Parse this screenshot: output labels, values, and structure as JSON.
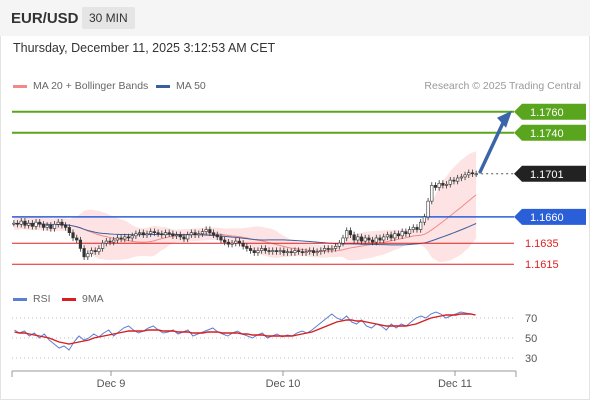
{
  "header": {
    "symbol": "EUR/USD",
    "timeframe": "30 MIN"
  },
  "datetime": "Thursday, December 11, 2025 3:12:53 AM CET",
  "legend": {
    "ma20": {
      "label": "MA 20 + Bollinger Bands",
      "color": "#f08a8a"
    },
    "ma50": {
      "label": "MA 50",
      "color": "#3a5f9f"
    }
  },
  "credit": "Research © 2025 Trading Central",
  "rsi_legend": {
    "rsi": {
      "label": "RSI",
      "color": "#5b7fd4"
    },
    "ma9": {
      "label": "9MA",
      "color": "#d81e1e"
    }
  },
  "chart_data": [
    {
      "type": "candlestick",
      "yaxis_range": [
        1.16,
        1.1775
      ],
      "current_price": {
        "label": "1.1701",
        "value": 1.1701,
        "color": "#222222"
      },
      "levels": [
        {
          "label": "1.1760",
          "value": 1.176,
          "kind": "resistance",
          "color": "#5aa51e"
        },
        {
          "label": "1.1740",
          "value": 1.174,
          "kind": "resistance",
          "color": "#5aa51e"
        },
        {
          "label": "1.1660",
          "value": 1.166,
          "kind": "pivot",
          "color": "#2a5fd8"
        },
        {
          "label": "1.1635",
          "value": 1.1635,
          "kind": "support",
          "color": "#e02020"
        },
        {
          "label": "1.1615",
          "value": 1.1615,
          "kind": "support",
          "color": "#e02020"
        }
      ],
      "projection": {
        "direction": "up",
        "target": 1.176,
        "color": "#3a65a8"
      },
      "x_ticks": [
        "Dec 9",
        "Dec 10",
        "Dec 11"
      ],
      "closes": [
        1.1654,
        1.1653,
        1.1656,
        1.1652,
        1.1654,
        1.1651,
        1.1655,
        1.1653,
        1.165,
        1.1652,
        1.1649,
        1.1653,
        1.1655,
        1.1652,
        1.165,
        1.1645,
        1.164,
        1.1638,
        1.163,
        1.1622,
        1.1625,
        1.1628,
        1.1627,
        1.163,
        1.1635,
        1.1637,
        1.1636,
        1.1638,
        1.164,
        1.1639,
        1.1641,
        1.164,
        1.1642,
        1.1644,
        1.1645,
        1.1643,
        1.1644,
        1.1646,
        1.1645,
        1.1644,
        1.1643,
        1.1645,
        1.1644,
        1.1642,
        1.1643,
        1.1641,
        1.1639,
        1.1643,
        1.1645,
        1.1643,
        1.1644,
        1.1646,
        1.1648,
        1.1645,
        1.1643,
        1.1641,
        1.1638,
        1.1636,
        1.1634,
        1.1635,
        1.1637,
        1.1635,
        1.1632,
        1.163,
        1.1628,
        1.1626,
        1.1628,
        1.163,
        1.1628,
        1.1627,
        1.1628,
        1.1627,
        1.1628,
        1.1626,
        1.1627,
        1.1626,
        1.1628,
        1.1627,
        1.1626,
        1.1627,
        1.1628,
        1.1626,
        1.1627,
        1.1628,
        1.163,
        1.1629,
        1.163,
        1.1632,
        1.1635,
        1.164,
        1.1647,
        1.1643,
        1.1638,
        1.1641,
        1.1637,
        1.164,
        1.1638,
        1.1636,
        1.164,
        1.1638,
        1.1641,
        1.1643,
        1.164,
        1.1644,
        1.1642,
        1.1646,
        1.1644,
        1.1648,
        1.165,
        1.1648,
        1.1655,
        1.166,
        1.1675,
        1.169,
        1.1688,
        1.1692,
        1.169,
        1.1691,
        1.1695,
        1.1694,
        1.1697,
        1.1698,
        1.17,
        1.1702,
        1.1701,
        1.1701
      ]
    },
    {
      "type": "line",
      "indicator": "RSI",
      "ylim": [
        20,
        80
      ],
      "ticks": [
        "70",
        "50",
        "30"
      ],
      "series": [
        {
          "name": "RSI",
          "values": [
            58,
            55,
            57,
            52,
            55,
            50,
            54,
            48,
            44,
            40,
            42,
            38,
            46,
            52,
            48,
            50,
            54,
            51,
            55,
            58,
            52,
            56,
            60,
            62,
            58,
            55,
            57,
            60,
            62,
            58,
            55,
            56,
            58,
            54,
            56,
            58,
            52,
            54,
            56,
            58,
            60,
            56,
            54,
            52,
            55,
            57,
            54,
            52,
            50,
            53,
            55,
            50,
            52,
            54,
            51,
            53,
            52,
            55,
            57,
            55,
            58,
            62,
            66,
            70,
            74,
            70,
            68,
            72,
            66,
            64,
            68,
            62,
            60,
            64,
            62,
            58,
            64,
            60,
            64,
            62,
            66,
            70,
            72,
            70,
            74,
            76,
            74,
            70,
            72,
            74,
            76,
            75,
            74,
            73
          ]
        },
        {
          "name": "9MA",
          "values": [
            56,
            55,
            55,
            54,
            53,
            52,
            51,
            50,
            48,
            46,
            45,
            44,
            45,
            46,
            47,
            48,
            50,
            51,
            52,
            53,
            54,
            55,
            56,
            57,
            57,
            57,
            57,
            58,
            58,
            58,
            57,
            57,
            57,
            56,
            56,
            56,
            55,
            55,
            55,
            56,
            56,
            56,
            55,
            55,
            55,
            55,
            54,
            54,
            53,
            53,
            53,
            52,
            52,
            52,
            52,
            52,
            52,
            53,
            54,
            55,
            56,
            58,
            60,
            62,
            64,
            66,
            67,
            68,
            68,
            67,
            67,
            66,
            65,
            64,
            63,
            62,
            62,
            62,
            62,
            62,
            63,
            64,
            66,
            68,
            70,
            71,
            72,
            73,
            73,
            73,
            74,
            74,
            74,
            73
          ]
        }
      ]
    }
  ]
}
